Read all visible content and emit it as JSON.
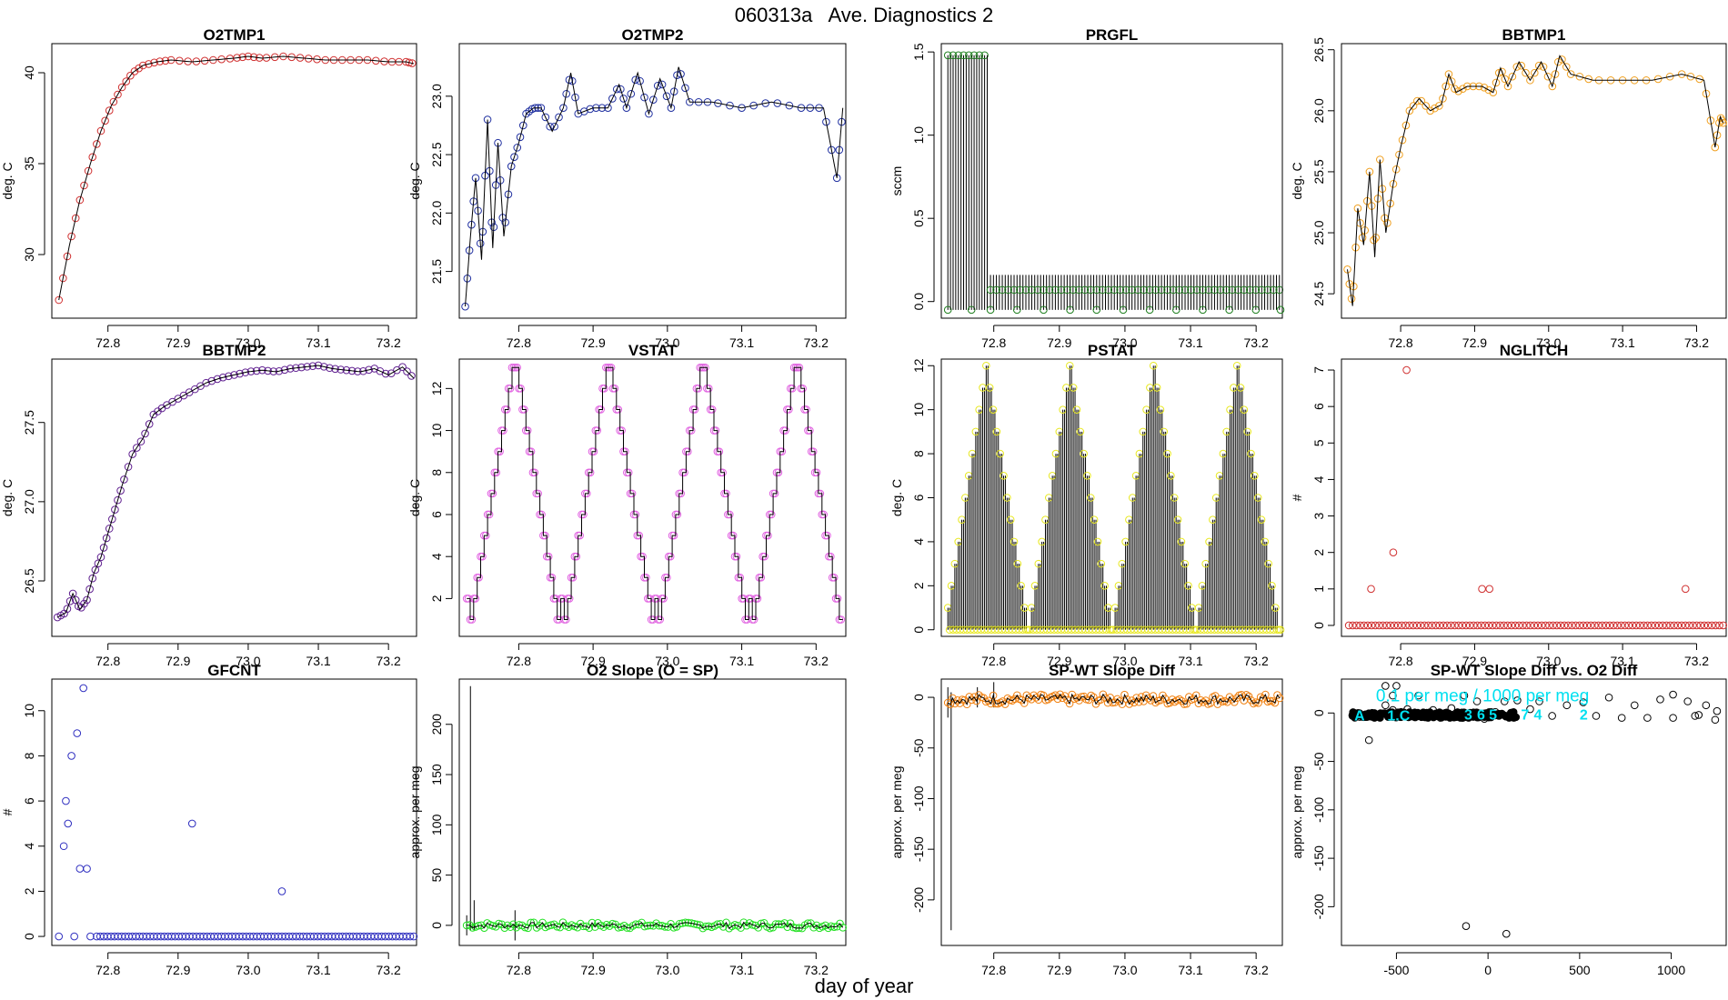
{
  "header": {
    "title": "060313a   Ave. Diagnostics 2",
    "xlabel": "day of year"
  },
  "chart_data": [
    {
      "type": "line",
      "title": "O2TMP1",
      "ylabel": "deg. C",
      "xlim": [
        72.72,
        73.24
      ],
      "ylim": [
        26.5,
        41.6
      ],
      "xticks": [
        72.8,
        72.9,
        73.0,
        73.1,
        73.2
      ],
      "yticks": [
        30,
        35,
        40
      ],
      "point_color": "#d03030",
      "x": [
        72.73,
        72.745,
        72.76,
        72.775,
        72.79,
        72.805,
        72.82,
        72.835,
        72.85,
        72.87,
        72.89,
        72.92,
        72.95,
        72.98,
        73.0,
        73.02,
        73.05,
        73.08,
        73.11,
        73.14,
        73.17,
        73.2,
        73.225,
        73.236
      ],
      "y": [
        27.5,
        30.5,
        33.0,
        35.0,
        36.8,
        38.2,
        39.2,
        40.0,
        40.4,
        40.6,
        40.7,
        40.6,
        40.7,
        40.8,
        40.9,
        40.8,
        40.9,
        40.8,
        40.7,
        40.7,
        40.7,
        40.6,
        40.6,
        40.5
      ],
      "points": true,
      "line": true
    },
    {
      "type": "line",
      "title": "O2TMP2",
      "ylabel": "deg. C",
      "xlim": [
        72.72,
        73.24
      ],
      "ylim": [
        21.1,
        23.45
      ],
      "xticks": [
        72.8,
        72.9,
        73.0,
        73.1,
        73.2
      ],
      "yticks": [
        21.5,
        22.0,
        22.5,
        23.0
      ],
      "point_color": "#2030a0",
      "x": [
        72.728,
        72.735,
        72.742,
        72.75,
        72.758,
        72.765,
        72.772,
        72.78,
        72.79,
        72.8,
        72.81,
        72.82,
        72.83,
        72.845,
        72.86,
        72.87,
        72.88,
        72.9,
        72.92,
        72.935,
        72.945,
        72.96,
        72.975,
        72.99,
        73.005,
        73.015,
        73.03,
        73.06,
        73.1,
        73.14,
        73.18,
        73.21,
        73.228,
        73.236
      ],
      "y": [
        21.2,
        21.8,
        22.3,
        21.6,
        22.8,
        21.7,
        22.6,
        21.8,
        22.4,
        22.6,
        22.85,
        22.9,
        22.9,
        22.7,
        22.9,
        23.2,
        22.85,
        22.9,
        22.9,
        23.1,
        22.9,
        23.2,
        22.85,
        23.15,
        22.9,
        23.25,
        22.95,
        22.95,
        22.9,
        22.95,
        22.9,
        22.9,
        22.3,
        22.9
      ],
      "points": true,
      "line": true
    },
    {
      "type": "line",
      "title": "PRGFL",
      "ylabel": "sccm",
      "xlim": [
        72.72,
        73.24
      ],
      "ylim": [
        -0.1,
        1.55
      ],
      "xticks": [
        72.8,
        72.9,
        73.0,
        73.1,
        73.2
      ],
      "yticks": [
        0.0,
        0.5,
        1.0,
        1.5
      ],
      "point_color": "#208020",
      "segments": [
        {
          "x_start": 72.73,
          "x_end": 72.79,
          "count": 16,
          "high": 1.48,
          "low": -0.05,
          "mark": 1.48
        },
        {
          "x_start": 72.795,
          "x_end": 73.24,
          "count": 100,
          "high": 0.16,
          "low": -0.05,
          "mark": 0.07
        }
      ],
      "points": true,
      "line": true
    },
    {
      "type": "line",
      "title": "BBTMP1",
      "ylabel": "deg. C",
      "xlim": [
        72.72,
        73.24
      ],
      "ylim": [
        24.3,
        26.55
      ],
      "xticks": [
        72.8,
        72.9,
        73.0,
        73.1,
        73.2
      ],
      "yticks": [
        24.5,
        25.0,
        25.5,
        26.0,
        26.5
      ],
      "point_color": "#f0a020",
      "x": [
        72.728,
        72.735,
        72.742,
        72.75,
        72.758,
        72.765,
        72.772,
        72.78,
        72.79,
        72.8,
        72.812,
        72.825,
        72.84,
        72.855,
        72.865,
        72.875,
        72.89,
        72.91,
        72.925,
        72.935,
        72.945,
        72.96,
        72.975,
        72.99,
        73.005,
        73.015,
        73.03,
        73.06,
        73.1,
        73.14,
        73.18,
        73.21,
        73.225,
        73.232,
        73.236
      ],
      "y": [
        24.7,
        24.4,
        25.2,
        24.9,
        25.5,
        24.8,
        25.6,
        25.0,
        25.4,
        25.7,
        26.0,
        26.1,
        26.0,
        26.05,
        26.3,
        26.15,
        26.2,
        26.2,
        26.15,
        26.35,
        26.2,
        26.4,
        26.25,
        26.4,
        26.2,
        26.45,
        26.3,
        26.25,
        26.25,
        26.25,
        26.3,
        26.25,
        25.7,
        25.95,
        25.9
      ],
      "points": true,
      "line": true
    },
    {
      "type": "line",
      "title": "BBTMP2",
      "ylabel": "deg. C",
      "xlim": [
        72.72,
        73.24
      ],
      "ylim": [
        26.15,
        27.9
      ],
      "xticks": [
        72.8,
        72.9,
        73.0,
        73.1,
        73.2
      ],
      "yticks": [
        26.5,
        27.0,
        27.5
      ],
      "point_color": "#602090",
      "x": [
        72.728,
        72.74,
        72.75,
        72.76,
        72.77,
        72.78,
        72.79,
        72.8,
        72.81,
        72.82,
        72.835,
        72.85,
        72.865,
        72.88,
        72.9,
        72.92,
        72.94,
        72.96,
        72.98,
        73.0,
        73.02,
        73.04,
        73.06,
        73.08,
        73.1,
        73.12,
        73.14,
        73.16,
        73.18,
        73.2,
        73.22,
        73.236
      ],
      "y": [
        26.27,
        26.3,
        26.42,
        26.32,
        26.38,
        26.55,
        26.65,
        26.8,
        26.95,
        27.1,
        27.3,
        27.4,
        27.55,
        27.6,
        27.65,
        27.7,
        27.75,
        27.78,
        27.8,
        27.82,
        27.83,
        27.82,
        27.84,
        27.85,
        27.86,
        27.84,
        27.83,
        27.82,
        27.84,
        27.8,
        27.85,
        27.78
      ],
      "points": true,
      "line": true
    },
    {
      "type": "line",
      "title": "VSTAT",
      "ylabel": "deg. C",
      "xlim": [
        72.72,
        73.24
      ],
      "ylim": [
        0.2,
        13.4
      ],
      "xticks": [
        72.8,
        72.9,
        73.0,
        73.1,
        73.2
      ],
      "yticks": [
        2,
        4,
        6,
        8,
        10,
        12
      ],
      "point_color": "#e060e0",
      "pattern": {
        "x_start": 72.73,
        "x_end": 73.236,
        "levels": [
          2,
          1,
          2,
          3,
          4,
          5,
          6,
          7,
          8,
          9,
          10,
          11,
          12,
          13,
          13,
          12,
          11,
          10,
          9,
          8,
          7,
          6,
          5,
          4,
          3,
          2,
          1
        ],
        "cycles": 4,
        "step_points": 2
      },
      "points": true,
      "line": true
    },
    {
      "type": "line",
      "title": "PSTAT",
      "ylabel": "deg. C",
      "xlim": [
        72.72,
        73.24
      ],
      "ylim": [
        -0.3,
        12.3
      ],
      "xticks": [
        72.8,
        72.9,
        73.0,
        73.1,
        73.2
      ],
      "yticks": [
        0,
        2,
        4,
        6,
        8,
        10,
        12
      ],
      "point_color": "#e8e820",
      "pattern": {
        "x_start": 72.73,
        "x_end": 73.24,
        "peak_levels": [
          1,
          2,
          3,
          4,
          5,
          6,
          7,
          8,
          9,
          10,
          11,
          12,
          11,
          10,
          9,
          8,
          7,
          6,
          5,
          4,
          3,
          2,
          1,
          0
        ],
        "cycles": 4
      },
      "points": true,
      "line": true
    },
    {
      "type": "scatter",
      "title": "NGLITCH",
      "ylabel": "#",
      "xlim": [
        72.72,
        73.24
      ],
      "ylim": [
        -0.3,
        7.3
      ],
      "xticks": [
        72.8,
        72.9,
        73.0,
        73.1,
        73.2
      ],
      "yticks": [
        0,
        1,
        2,
        3,
        4,
        5,
        6,
        7
      ],
      "point_color": "#d03030",
      "baseline": {
        "x_start": 72.73,
        "x_end": 73.236,
        "count": 100,
        "y": 0
      },
      "x": [
        72.76,
        72.79,
        72.808,
        72.91,
        72.92,
        73.185
      ],
      "y": [
        1,
        2,
        7,
        1,
        1,
        1
      ],
      "points": true,
      "line": false
    },
    {
      "type": "scatter",
      "title": "GFCNT",
      "ylabel": "#",
      "xlim": [
        72.72,
        73.24
      ],
      "ylim": [
        -0.4,
        11.4
      ],
      "xticks": [
        72.8,
        72.9,
        73.0,
        73.1,
        73.2
      ],
      "yticks": [
        0,
        2,
        4,
        6,
        8,
        10
      ],
      "point_color": "#3030c0",
      "baseline": {
        "x_start": 72.784,
        "x_end": 73.236,
        "count": 90,
        "y": 0
      },
      "x": [
        72.73,
        72.737,
        72.74,
        72.743,
        72.748,
        72.752,
        72.756,
        72.76,
        72.765,
        72.77,
        72.775,
        72.92,
        73.048
      ],
      "y": [
        0,
        4,
        6,
        5,
        8,
        0,
        9,
        3,
        11,
        3,
        0,
        5,
        2
      ],
      "points": true,
      "line": false
    },
    {
      "type": "line",
      "title": "O2 Slope (O = SP)",
      "ylabel": "approx. per meg",
      "xlim": [
        72.72,
        73.24
      ],
      "ylim": [
        -20,
        245
      ],
      "xticks": [
        72.8,
        72.9,
        73.0,
        73.1,
        73.2
      ],
      "yticks": [
        0,
        50,
        100,
        150,
        200
      ],
      "point_color": "#20e020",
      "band": {
        "x_start": 72.73,
        "x_end": 73.236,
        "count": 130,
        "center": 0,
        "spread": 3
      },
      "spikes": [
        {
          "x": 72.73,
          "low": -10,
          "high": 10
        },
        {
          "x": 72.735,
          "low": -5,
          "high": 238
        },
        {
          "x": 72.74,
          "low": -5,
          "high": 25
        },
        {
          "x": 72.795,
          "low": -15,
          "high": 15
        }
      ],
      "points": true,
      "line": true
    },
    {
      "type": "line",
      "title": "SP-WT Slope Diff",
      "ylabel": "approx. per meg",
      "xlim": [
        72.72,
        73.24
      ],
      "ylim": [
        -245,
        18
      ],
      "xticks": [
        72.8,
        72.9,
        73.0,
        73.1,
        73.2
      ],
      "yticks": [
        -200,
        -150,
        -100,
        -50,
        0
      ],
      "point_color": "#f08010",
      "band": {
        "x_start": 72.73,
        "x_end": 73.236,
        "count": 140,
        "center": -2,
        "spread": 5
      },
      "spikes": [
        {
          "x": 72.73,
          "low": -20,
          "high": 10
        },
        {
          "x": 72.735,
          "low": -230,
          "high": 5
        },
        {
          "x": 72.775,
          "low": -10,
          "high": 10
        },
        {
          "x": 72.8,
          "low": -10,
          "high": 15
        }
      ],
      "points": true,
      "line": true
    },
    {
      "type": "scatter",
      "title": "SP-WT Slope Diff vs. O2 Diff",
      "ylabel": "approx. per meg",
      "xlim": [
        -800,
        1300
      ],
      "ylim": [
        -240,
        35
      ],
      "xticks": [
        -500,
        0,
        500,
        1000
      ],
      "yticks": [
        -200,
        -150,
        -100,
        -50,
        0
      ],
      "point_color": "#000000",
      "x": [
        -740,
        -700,
        -650,
        -610,
        -560,
        -520,
        -500,
        -440,
        -380,
        -300,
        -260,
        -200,
        -140,
        -120,
        -60,
        -20,
        40,
        100,
        160,
        230,
        280,
        350,
        430,
        520,
        590,
        660,
        730,
        800,
        870,
        940,
        1010,
        1090,
        1150,
        1190,
        1240,
        1250,
        -560,
        -520,
        -130,
        90,
        1130,
        1010
      ],
      "y": [
        -3,
        -4,
        -28,
        -2,
        8,
        3,
        28,
        4,
        18,
        3,
        -5,
        5,
        -5,
        -220,
        12,
        -6,
        1,
        -228,
        13,
        4,
        12,
        -3,
        8,
        11,
        -3,
        16,
        -5,
        8,
        -5,
        14,
        -5,
        12,
        -2,
        8,
        -7,
        2,
        28,
        18,
        18,
        12,
        -3,
        19
      ],
      "cluster": {
        "x_start": -740,
        "x_end": 160,
        "count": 220,
        "center": -2,
        "spread": 3
      },
      "annotation": {
        "text": "0.1 per meg / 1000 per meg",
        "color": "#00e0f0",
        "x": -30,
        "y": 12
      },
      "labels": [
        {
          "text": "A",
          "x": -730,
          "y": -2
        },
        {
          "text": "1.C",
          "x": -550,
          "y": -2
        },
        {
          "text": "3",
          "x": -130,
          "y": -1
        },
        {
          "text": "6",
          "x": -60,
          "y": -1
        },
        {
          "text": "5",
          "x": 5,
          "y": -1
        },
        {
          "text": "7",
          "x": 180,
          "y": -1
        },
        {
          "text": "4",
          "x": 250,
          "y": -1
        },
        {
          "text": "2",
          "x": 500,
          "y": -1
        }
      ],
      "points": true,
      "line": false
    }
  ]
}
